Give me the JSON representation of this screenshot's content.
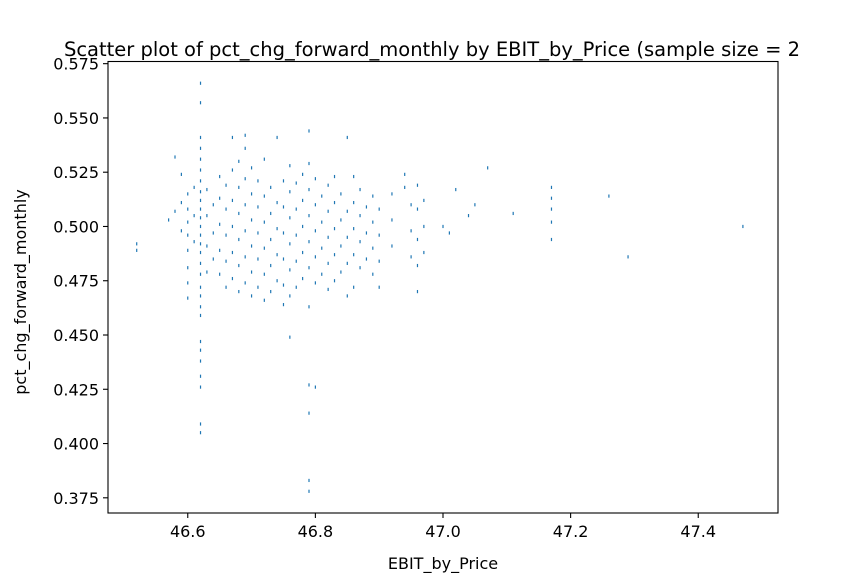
{
  "chart_data": {
    "type": "scatter",
    "title": "Scatter plot of pct_chg_forward_monthly by EBIT_by_Price (sample size = 2",
    "xlabel": "EBIT_by_Price",
    "ylabel": "pct_chg_forward_monthly",
    "xlim": [
      46.475,
      47.525
    ],
    "ylim": [
      0.368,
      0.576
    ],
    "xticks": [
      {
        "value": 46.6,
        "label": "46.6"
      },
      {
        "value": 46.8,
        "label": "46.8"
      },
      {
        "value": 47.0,
        "label": "47.0"
      },
      {
        "value": 47.2,
        "label": "47.2"
      },
      {
        "value": 47.4,
        "label": "47.4"
      }
    ],
    "yticks": [
      {
        "value": 0.375,
        "label": "0.375"
      },
      {
        "value": 0.4,
        "label": "0.400"
      },
      {
        "value": 0.425,
        "label": "0.425"
      },
      {
        "value": 0.45,
        "label": "0.450"
      },
      {
        "value": 0.475,
        "label": "0.475"
      },
      {
        "value": 0.5,
        "label": "0.500"
      },
      {
        "value": 0.525,
        "label": "0.525"
      },
      {
        "value": 0.55,
        "label": "0.550"
      },
      {
        "value": 0.575,
        "label": "0.575"
      }
    ],
    "marker_color": "#1f77b4",
    "grid": false,
    "series": [
      {
        "points": [
          [
            46.52,
            0.489
          ],
          [
            46.52,
            0.492
          ],
          [
            46.57,
            0.503
          ],
          [
            46.58,
            0.507
          ],
          [
            46.58,
            0.532
          ],
          [
            46.59,
            0.498
          ],
          [
            46.59,
            0.511
          ],
          [
            46.59,
            0.524
          ],
          [
            46.6,
            0.467
          ],
          [
            46.6,
            0.474
          ],
          [
            46.6,
            0.481
          ],
          [
            46.6,
            0.489
          ],
          [
            46.6,
            0.496
          ],
          [
            46.6,
            0.502
          ],
          [
            46.6,
            0.508
          ],
          [
            46.6,
            0.515
          ],
          [
            46.61,
            0.493
          ],
          [
            46.61,
            0.505
          ],
          [
            46.61,
            0.518
          ],
          [
            46.62,
            0.405
          ],
          [
            46.62,
            0.409
          ],
          [
            46.62,
            0.426
          ],
          [
            46.62,
            0.431
          ],
          [
            46.62,
            0.438
          ],
          [
            46.62,
            0.443
          ],
          [
            46.62,
            0.447
          ],
          [
            46.62,
            0.459
          ],
          [
            46.62,
            0.463
          ],
          [
            46.62,
            0.468
          ],
          [
            46.62,
            0.472
          ],
          [
            46.62,
            0.478
          ],
          [
            46.62,
            0.483
          ],
          [
            46.62,
            0.488
          ],
          [
            46.62,
            0.492
          ],
          [
            46.62,
            0.496
          ],
          [
            46.62,
            0.5
          ],
          [
            46.62,
            0.504
          ],
          [
            46.62,
            0.508
          ],
          [
            46.62,
            0.512
          ],
          [
            46.62,
            0.516
          ],
          [
            46.62,
            0.521
          ],
          [
            46.62,
            0.526
          ],
          [
            46.62,
            0.531
          ],
          [
            46.62,
            0.536
          ],
          [
            46.62,
            0.541
          ],
          [
            46.62,
            0.557
          ],
          [
            46.62,
            0.566
          ],
          [
            46.63,
            0.479
          ],
          [
            46.63,
            0.491
          ],
          [
            46.63,
            0.505
          ],
          [
            46.63,
            0.517
          ],
          [
            46.64,
            0.485
          ],
          [
            46.64,
            0.497
          ],
          [
            46.64,
            0.51
          ],
          [
            46.65,
            0.478
          ],
          [
            46.65,
            0.489
          ],
          [
            46.65,
            0.501
          ],
          [
            46.65,
            0.513
          ],
          [
            46.65,
            0.523
          ],
          [
            46.66,
            0.472
          ],
          [
            46.66,
            0.484
          ],
          [
            46.66,
            0.496
          ],
          [
            46.66,
            0.508
          ],
          [
            46.66,
            0.519
          ],
          [
            46.67,
            0.476
          ],
          [
            46.67,
            0.488
          ],
          [
            46.67,
            0.5
          ],
          [
            46.67,
            0.512
          ],
          [
            46.67,
            0.526
          ],
          [
            46.67,
            0.541
          ],
          [
            46.68,
            0.47
          ],
          [
            46.68,
            0.482
          ],
          [
            46.68,
            0.494
          ],
          [
            46.68,
            0.506
          ],
          [
            46.68,
            0.518
          ],
          [
            46.68,
            0.53
          ],
          [
            46.69,
            0.474
          ],
          [
            46.69,
            0.486
          ],
          [
            46.69,
            0.498
          ],
          [
            46.69,
            0.51
          ],
          [
            46.69,
            0.522
          ],
          [
            46.69,
            0.536
          ],
          [
            46.69,
            0.542
          ],
          [
            46.7,
            0.468
          ],
          [
            46.7,
            0.479
          ],
          [
            46.7,
            0.491
          ],
          [
            46.7,
            0.503
          ],
          [
            46.7,
            0.515
          ],
          [
            46.7,
            0.527
          ],
          [
            46.71,
            0.472
          ],
          [
            46.71,
            0.485
          ],
          [
            46.71,
            0.497
          ],
          [
            46.71,
            0.509
          ],
          [
            46.71,
            0.521
          ],
          [
            46.72,
            0.466
          ],
          [
            46.72,
            0.478
          ],
          [
            46.72,
            0.49
          ],
          [
            46.72,
            0.502
          ],
          [
            46.72,
            0.514
          ],
          [
            46.72,
            0.531
          ],
          [
            46.73,
            0.47
          ],
          [
            46.73,
            0.482
          ],
          [
            46.73,
            0.494
          ],
          [
            46.73,
            0.506
          ],
          [
            46.73,
            0.518
          ],
          [
            46.74,
            0.475
          ],
          [
            46.74,
            0.487
          ],
          [
            46.74,
            0.499
          ],
          [
            46.74,
            0.511
          ],
          [
            46.74,
            0.541
          ],
          [
            46.75,
            0.464
          ],
          [
            46.75,
            0.473
          ],
          [
            46.75,
            0.485
          ],
          [
            46.75,
            0.497
          ],
          [
            46.75,
            0.509
          ],
          [
            46.75,
            0.521
          ],
          [
            46.76,
            0.449
          ],
          [
            46.76,
            0.468
          ],
          [
            46.76,
            0.48
          ],
          [
            46.76,
            0.492
          ],
          [
            46.76,
            0.504
          ],
          [
            46.76,
            0.516
          ],
          [
            46.76,
            0.528
          ],
          [
            46.77,
            0.472
          ],
          [
            46.77,
            0.484
          ],
          [
            46.77,
            0.496
          ],
          [
            46.77,
            0.508
          ],
          [
            46.77,
            0.52
          ],
          [
            46.78,
            0.476
          ],
          [
            46.78,
            0.488
          ],
          [
            46.78,
            0.5
          ],
          [
            46.78,
            0.512
          ],
          [
            46.78,
            0.524
          ],
          [
            46.79,
            0.378
          ],
          [
            46.79,
            0.383
          ],
          [
            46.79,
            0.414
          ],
          [
            46.79,
            0.427
          ],
          [
            46.79,
            0.463
          ],
          [
            46.79,
            0.481
          ],
          [
            46.79,
            0.493
          ],
          [
            46.79,
            0.505
          ],
          [
            46.79,
            0.517
          ],
          [
            46.79,
            0.529
          ],
          [
            46.79,
            0.544
          ],
          [
            46.8,
            0.426
          ],
          [
            46.8,
            0.474
          ],
          [
            46.8,
            0.486
          ],
          [
            46.8,
            0.498
          ],
          [
            46.8,
            0.51
          ],
          [
            46.8,
            0.522
          ],
          [
            46.81,
            0.478
          ],
          [
            46.81,
            0.49
          ],
          [
            46.81,
            0.502
          ],
          [
            46.81,
            0.514
          ],
          [
            46.82,
            0.471
          ],
          [
            46.82,
            0.483
          ],
          [
            46.82,
            0.495
          ],
          [
            46.82,
            0.507
          ],
          [
            46.82,
            0.519
          ],
          [
            46.83,
            0.475
          ],
          [
            46.83,
            0.487
          ],
          [
            46.83,
            0.499
          ],
          [
            46.83,
            0.511
          ],
          [
            46.83,
            0.523
          ],
          [
            46.84,
            0.479
          ],
          [
            46.84,
            0.491
          ],
          [
            46.84,
            0.503
          ],
          [
            46.84,
            0.515
          ],
          [
            46.85,
            0.468
          ],
          [
            46.85,
            0.483
          ],
          [
            46.85,
            0.495
          ],
          [
            46.85,
            0.507
          ],
          [
            46.85,
            0.541
          ],
          [
            46.86,
            0.472
          ],
          [
            46.86,
            0.487
          ],
          [
            46.86,
            0.499
          ],
          [
            46.86,
            0.511
          ],
          [
            46.86,
            0.523
          ],
          [
            46.87,
            0.481
          ],
          [
            46.87,
            0.493
          ],
          [
            46.87,
            0.505
          ],
          [
            46.87,
            0.517
          ],
          [
            46.88,
            0.485
          ],
          [
            46.88,
            0.497
          ],
          [
            46.88,
            0.509
          ],
          [
            46.89,
            0.478
          ],
          [
            46.89,
            0.49
          ],
          [
            46.89,
            0.502
          ],
          [
            46.89,
            0.514
          ],
          [
            46.9,
            0.472
          ],
          [
            46.9,
            0.484
          ],
          [
            46.9,
            0.496
          ],
          [
            46.9,
            0.508
          ],
          [
            46.92,
            0.491
          ],
          [
            46.92,
            0.503
          ],
          [
            46.92,
            0.515
          ],
          [
            46.94,
            0.518
          ],
          [
            46.94,
            0.524
          ],
          [
            46.95,
            0.486
          ],
          [
            46.95,
            0.498
          ],
          [
            46.95,
            0.51
          ],
          [
            46.96,
            0.47
          ],
          [
            46.96,
            0.482
          ],
          [
            46.96,
            0.494
          ],
          [
            46.96,
            0.508
          ],
          [
            46.96,
            0.519
          ],
          [
            46.97,
            0.488
          ],
          [
            46.97,
            0.5
          ],
          [
            46.97,
            0.512
          ],
          [
            47.0,
            0.5
          ],
          [
            47.01,
            0.497
          ],
          [
            47.02,
            0.517
          ],
          [
            47.04,
            0.505
          ],
          [
            47.05,
            0.51
          ],
          [
            47.07,
            0.527
          ],
          [
            47.11,
            0.506
          ],
          [
            47.17,
            0.494
          ],
          [
            47.17,
            0.502
          ],
          [
            47.17,
            0.508
          ],
          [
            47.17,
            0.513
          ],
          [
            47.17,
            0.518
          ],
          [
            47.26,
            0.514
          ],
          [
            47.29,
            0.486
          ],
          [
            47.47,
            0.5
          ]
        ]
      }
    ]
  }
}
